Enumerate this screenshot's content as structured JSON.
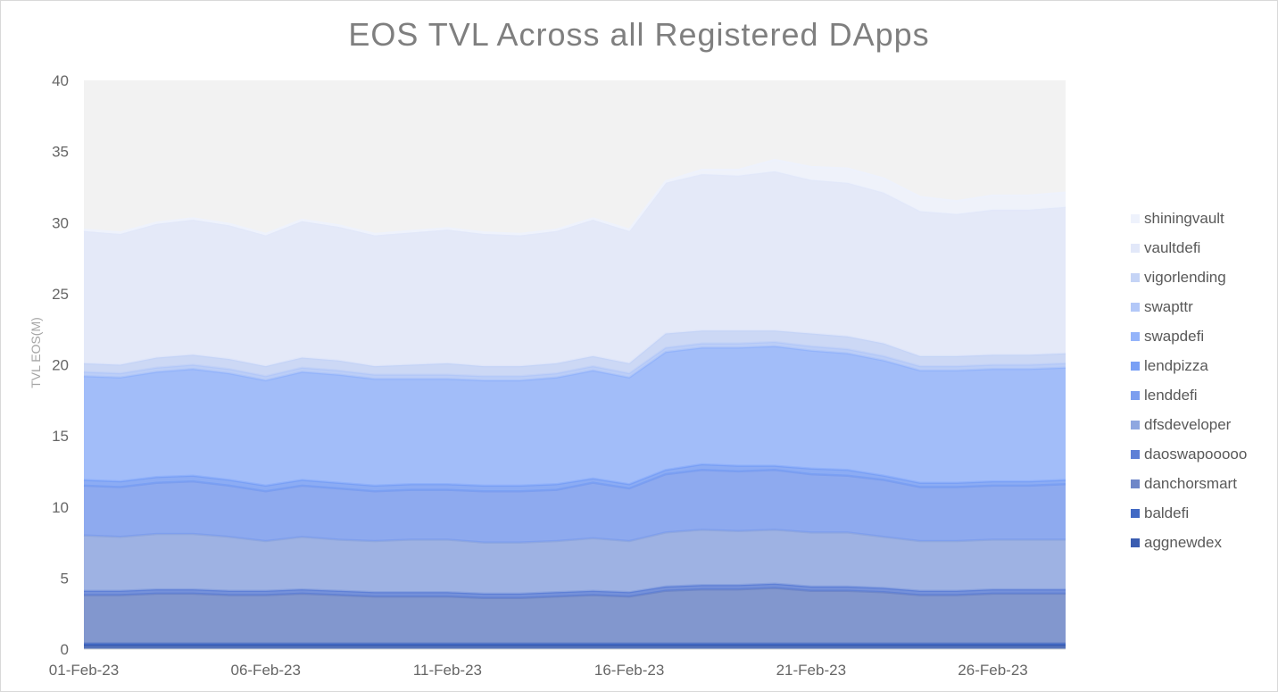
{
  "chart_data": {
    "type": "area",
    "stacked": true,
    "title": "EOS TVL Across all Registered DApps",
    "xlabel": "",
    "ylabel": "TVL EOS(M)",
    "ylim": [
      0,
      40
    ],
    "yticks": [
      0,
      5,
      10,
      15,
      20,
      25,
      30,
      35,
      40
    ],
    "xtick_labels": [
      "01-Feb-23",
      "06-Feb-23",
      "11-Feb-23",
      "16-Feb-23",
      "21-Feb-23",
      "26-Feb-23"
    ],
    "x": [
      "01-Feb-23",
      "02-Feb-23",
      "03-Feb-23",
      "04-Feb-23",
      "05-Feb-23",
      "06-Feb-23",
      "07-Feb-23",
      "08-Feb-23",
      "09-Feb-23",
      "10-Feb-23",
      "11-Feb-23",
      "12-Feb-23",
      "13-Feb-23",
      "14-Feb-23",
      "15-Feb-23",
      "16-Feb-23",
      "17-Feb-23",
      "18-Feb-23",
      "19-Feb-23",
      "20-Feb-23",
      "21-Feb-23",
      "22-Feb-23",
      "23-Feb-23",
      "24-Feb-23",
      "25-Feb-23",
      "26-Feb-23",
      "27-Feb-23",
      "28-Feb-23"
    ],
    "legend_position": "right",
    "grid": false,
    "plot_background": "#f2f2f2",
    "series": [
      {
        "name": "aggnewdex",
        "color": "#3a5cb0",
        "values": [
          0.3,
          0.3,
          0.3,
          0.3,
          0.3,
          0.3,
          0.3,
          0.3,
          0.3,
          0.3,
          0.3,
          0.3,
          0.3,
          0.3,
          0.3,
          0.3,
          0.3,
          0.3,
          0.3,
          0.3,
          0.3,
          0.3,
          0.3,
          0.3,
          0.3,
          0.3,
          0.3,
          0.3
        ]
      },
      {
        "name": "baldefi",
        "color": "#4169c4",
        "values": [
          0.1,
          0.1,
          0.1,
          0.1,
          0.1,
          0.1,
          0.1,
          0.1,
          0.1,
          0.1,
          0.1,
          0.1,
          0.1,
          0.1,
          0.1,
          0.1,
          0.1,
          0.1,
          0.1,
          0.1,
          0.1,
          0.1,
          0.1,
          0.1,
          0.1,
          0.1,
          0.1,
          0.1
        ]
      },
      {
        "name": "danchorsmart",
        "color": "#6f87c8",
        "values": [
          3.4,
          3.4,
          3.5,
          3.5,
          3.4,
          3.4,
          3.5,
          3.4,
          3.3,
          3.3,
          3.3,
          3.2,
          3.2,
          3.3,
          3.4,
          3.3,
          3.7,
          3.8,
          3.8,
          3.9,
          3.7,
          3.7,
          3.6,
          3.4,
          3.4,
          3.5,
          3.5,
          3.5
        ]
      },
      {
        "name": "daoswapooooo",
        "color": "#5f80d6",
        "values": [
          0.3,
          0.3,
          0.3,
          0.3,
          0.3,
          0.3,
          0.3,
          0.3,
          0.3,
          0.3,
          0.3,
          0.3,
          0.3,
          0.3,
          0.3,
          0.3,
          0.3,
          0.3,
          0.3,
          0.3,
          0.3,
          0.3,
          0.3,
          0.3,
          0.3,
          0.3,
          0.3,
          0.3
        ]
      },
      {
        "name": "dfsdeveloper",
        "color": "#8fa7e0",
        "values": [
          3.9,
          3.8,
          3.9,
          3.9,
          3.8,
          3.5,
          3.7,
          3.6,
          3.6,
          3.7,
          3.7,
          3.6,
          3.6,
          3.6,
          3.7,
          3.6,
          3.8,
          3.9,
          3.8,
          3.8,
          3.8,
          3.8,
          3.6,
          3.5,
          3.5,
          3.5,
          3.5,
          3.5
        ]
      },
      {
        "name": "lenddefi",
        "color": "#7c9eef",
        "values": [
          3.5,
          3.5,
          3.6,
          3.7,
          3.6,
          3.5,
          3.6,
          3.6,
          3.5,
          3.5,
          3.5,
          3.6,
          3.6,
          3.6,
          3.9,
          3.7,
          4.1,
          4.2,
          4.2,
          4.2,
          4.1,
          4.0,
          4.0,
          3.8,
          3.8,
          3.8,
          3.8,
          3.9
        ]
      },
      {
        "name": "lendpizza",
        "color": "#7aa0f5",
        "values": [
          0.4,
          0.4,
          0.4,
          0.4,
          0.4,
          0.4,
          0.4,
          0.4,
          0.4,
          0.4,
          0.4,
          0.4,
          0.4,
          0.4,
          0.3,
          0.3,
          0.3,
          0.4,
          0.4,
          0.3,
          0.4,
          0.4,
          0.3,
          0.3,
          0.3,
          0.3,
          0.3,
          0.3
        ]
      },
      {
        "name": "swapdefi",
        "color": "#94b4fa",
        "values": [
          7.3,
          7.3,
          7.4,
          7.5,
          7.5,
          7.4,
          7.6,
          7.6,
          7.5,
          7.4,
          7.4,
          7.4,
          7.4,
          7.5,
          7.6,
          7.5,
          8.3,
          8.2,
          8.3,
          8.4,
          8.3,
          8.2,
          8.1,
          7.9,
          7.9,
          7.9,
          7.9,
          7.9
        ]
      },
      {
        "name": "swapttr",
        "color": "#b3c8f8",
        "values": [
          0.3,
          0.3,
          0.3,
          0.3,
          0.3,
          0.3,
          0.3,
          0.3,
          0.3,
          0.3,
          0.3,
          0.3,
          0.3,
          0.3,
          0.3,
          0.3,
          0.3,
          0.3,
          0.3,
          0.3,
          0.3,
          0.3,
          0.3,
          0.3,
          0.3,
          0.3,
          0.3,
          0.3
        ]
      },
      {
        "name": "vigorlending",
        "color": "#c5d4f6",
        "values": [
          0.6,
          0.6,
          0.7,
          0.7,
          0.7,
          0.7,
          0.7,
          0.7,
          0.6,
          0.7,
          0.8,
          0.7,
          0.7,
          0.7,
          0.7,
          0.7,
          1.0,
          0.9,
          0.9,
          0.8,
          0.9,
          0.9,
          0.9,
          0.7,
          0.7,
          0.7,
          0.7,
          0.7
        ]
      },
      {
        "name": "vaultdefi",
        "color": "#e2e8f9",
        "values": [
          9.3,
          9.2,
          9.4,
          9.5,
          9.4,
          9.2,
          9.6,
          9.4,
          9.2,
          9.3,
          9.4,
          9.3,
          9.2,
          9.3,
          9.6,
          9.3,
          10.6,
          11.0,
          10.9,
          11.2,
          10.8,
          10.8,
          10.6,
          10.2,
          10.0,
          10.2,
          10.2,
          10.3
        ]
      },
      {
        "name": "shiningvault",
        "color": "#eef2fc",
        "values": [
          0.1,
          0.1,
          0.1,
          0.1,
          0.1,
          0.1,
          0.1,
          0.1,
          0.1,
          0.1,
          0.1,
          0.1,
          0.1,
          0.1,
          0.1,
          0.1,
          0.1,
          0.3,
          0.4,
          0.8,
          0.9,
          1.0,
          1.0,
          1.0,
          0.9,
          1.0,
          1.0,
          1.0
        ]
      }
    ]
  }
}
